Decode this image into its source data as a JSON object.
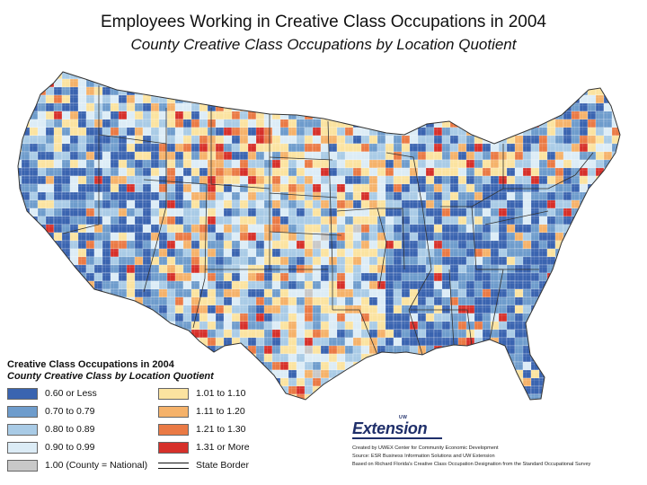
{
  "title": "Employees Working in Creative Class Occupations in 2004",
  "subtitle": "County Creative Class Occupations by Location Quotient",
  "legend": {
    "title": "Creative Class Occupations in 2004",
    "subtitle": "County Creative Class by Location Quotient",
    "items": [
      {
        "label": "0.60 or Less",
        "color": "#3a64b0"
      },
      {
        "label": "0.70 to 0.79",
        "color": "#6e9ccc"
      },
      {
        "label": "0.80 to 0.89",
        "color": "#a9cbe6"
      },
      {
        "label": "0.90 to 0.99",
        "color": "#dcecf6"
      },
      {
        "label": "1.00 (County = National)",
        "color": "#c8c8c8"
      },
      {
        "label": "1.01 to 1.10",
        "color": "#fbe3a0"
      },
      {
        "label": "1.11 to 1.20",
        "color": "#f5b26a"
      },
      {
        "label": "1.21 to 1.30",
        "color": "#ea7a45"
      },
      {
        "label": "1.31 or More",
        "color": "#d6302a"
      },
      {
        "label": "State Border",
        "color": "#000000"
      }
    ]
  },
  "credits": {
    "logo_small": "UW",
    "logo": "Extension",
    "lines": [
      "Created by UWEX Center for Community Economic Development",
      "Source: ESR Business Information Solutions and UW Extension",
      "Based on Richard Florida's Creative Class Occupation Designation from the Standard Occupational Survey"
    ]
  }
}
